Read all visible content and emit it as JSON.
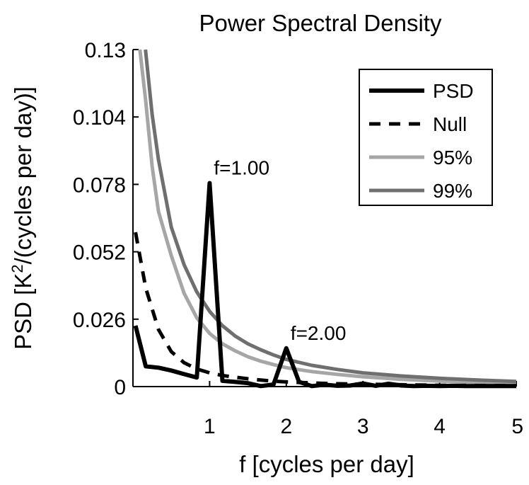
{
  "chart_data": {
    "type": "line",
    "title": "Power Spectral Density",
    "xlabel": "f [cycles per day]",
    "ylabel_prefix": "PSD [K",
    "ylabel_sup": "2",
    "ylabel_suffix": "/(cycles per day)]",
    "xlim": [
      0,
      5
    ],
    "ylim": [
      0,
      0.13
    ],
    "xticks": [
      1,
      2,
      3,
      4,
      5
    ],
    "xtick_labels": [
      "1",
      "2",
      "3",
      "4",
      "5"
    ],
    "yticks": [
      0,
      0.026,
      0.052,
      0.078,
      0.104,
      0.13
    ],
    "ytick_labels": [
      "0",
      "0.026",
      "0.052",
      "0.078",
      "0.104",
      "0.13"
    ],
    "grid": false,
    "legend_position": "top-right",
    "series": [
      {
        "name": "PSD",
        "color": "#000000",
        "style": "solid",
        "x": [
          0.033,
          0.167,
          0.333,
          0.5,
          0.667,
          0.833,
          1.0,
          1.167,
          1.333,
          1.5,
          1.667,
          1.833,
          2.0,
          2.167,
          2.333,
          2.5,
          2.667,
          2.833,
          3.0,
          3.167,
          3.333,
          3.5,
          3.667,
          3.833,
          4.0,
          4.167,
          4.333,
          4.5,
          4.667,
          4.833,
          5.0
        ],
        "y": [
          0.0235,
          0.0078,
          0.0073,
          0.0062,
          0.0048,
          0.0035,
          0.0785,
          0.0022,
          0.0018,
          0.0013,
          0.0002,
          0.0008,
          0.0148,
          0.0018,
          0.0002,
          0.0007,
          0.0003,
          0.0004,
          0.0012,
          0.0003,
          0.0011,
          0.0004,
          0.0002,
          0.0003,
          0.0002,
          0.0003,
          0.0002,
          0.0002,
          0.0002,
          0.0002,
          0.0002
        ]
      },
      {
        "name": "Null",
        "color": "#000000",
        "style": "dashed",
        "x": [
          0.033,
          0.167,
          0.333,
          0.5,
          0.667,
          0.833,
          1.0,
          1.167,
          1.333,
          1.5,
          1.667,
          1.833,
          2.0,
          2.333,
          2.667,
          3.0,
          3.5,
          4.0,
          4.5,
          5.0
        ],
        "y": [
          0.0595,
          0.038,
          0.022,
          0.0135,
          0.0092,
          0.0068,
          0.0053,
          0.0043,
          0.0036,
          0.003,
          0.0025,
          0.0021,
          0.0018,
          0.0014,
          0.0011,
          0.0009,
          0.0007,
          0.0005,
          0.0004,
          0.0003
        ]
      },
      {
        "name": "95%",
        "color": "#a6a6a6",
        "style": "solid",
        "x": [
          0.09,
          0.167,
          0.25,
          0.333,
          0.5,
          0.667,
          0.833,
          1.0,
          1.167,
          1.333,
          1.5,
          1.667,
          1.833,
          2.0,
          2.333,
          2.667,
          3.0,
          3.5,
          4.0,
          4.5,
          5.0
        ],
        "y": [
          0.13,
          0.11,
          0.085,
          0.0675,
          0.0505,
          0.036,
          0.0265,
          0.0205,
          0.0165,
          0.0138,
          0.0115,
          0.0098,
          0.0085,
          0.0073,
          0.0058,
          0.0047,
          0.0038,
          0.0028,
          0.0021,
          0.0016,
          0.0013
        ]
      },
      {
        "name": "99%",
        "color": "#6f6f6f",
        "style": "solid",
        "x": [
          0.163,
          0.25,
          0.333,
          0.5,
          0.667,
          0.833,
          1.0,
          1.167,
          1.333,
          1.5,
          1.667,
          1.833,
          2.0,
          2.333,
          2.667,
          3.0,
          3.5,
          4.0,
          4.5,
          5.0
        ],
        "y": [
          0.13,
          0.105,
          0.0875,
          0.0615,
          0.047,
          0.0365,
          0.029,
          0.0235,
          0.0195,
          0.0165,
          0.0142,
          0.0122,
          0.0105,
          0.0082,
          0.0066,
          0.0053,
          0.0041,
          0.0032,
          0.0025,
          0.002
        ]
      }
    ],
    "annotations": [
      {
        "text": "f=1.00",
        "x": 1.0,
        "y": 0.0785
      },
      {
        "text": "f=2.00",
        "x": 2.0,
        "y": 0.0148
      }
    ]
  }
}
